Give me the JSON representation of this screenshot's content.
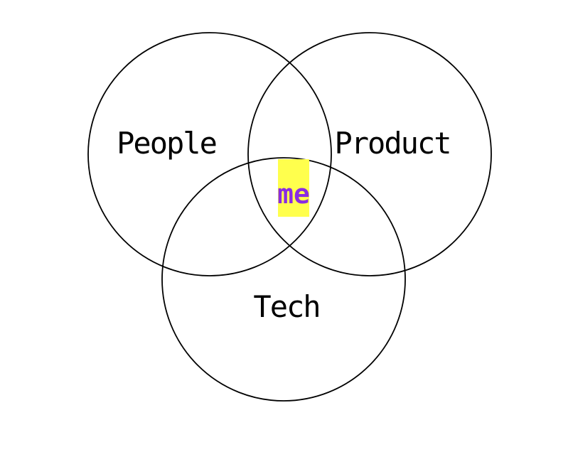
{
  "diagram": {
    "type": "venn",
    "sets": [
      {
        "id": "people",
        "label": "People"
      },
      {
        "id": "product",
        "label": "Product"
      },
      {
        "id": "tech",
        "label": "Tech"
      }
    ],
    "intersection": {
      "label": "me",
      "text_color": "#8a2be2",
      "highlight_color": "#ffff4d"
    },
    "stroke_color": "#000000",
    "background": "#ffffff"
  }
}
